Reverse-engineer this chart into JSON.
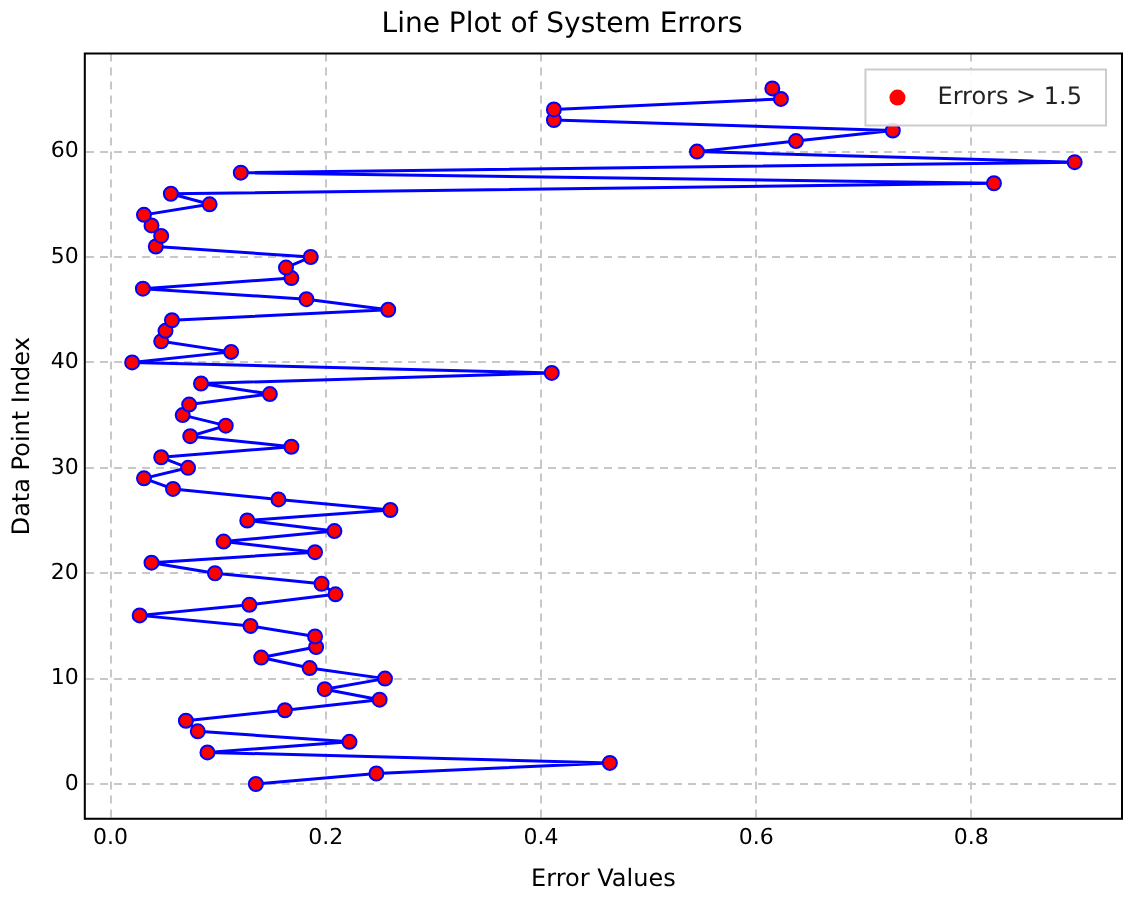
{
  "chart_data": {
    "type": "line",
    "title": "Line Plot of System Errors",
    "xlabel": "Error Values",
    "ylabel": "Data Point Index",
    "x": [
      0.135,
      0.247,
      0.464,
      0.09,
      0.222,
      0.081,
      0.07,
      0.162,
      0.25,
      0.199,
      0.255,
      0.185,
      0.14,
      0.191,
      0.19,
      0.13,
      0.027,
      0.129,
      0.209,
      0.196,
      0.097,
      0.038,
      0.19,
      0.105,
      0.208,
      0.127,
      0.26,
      0.156,
      0.058,
      0.031,
      0.072,
      0.047,
      0.168,
      0.074,
      0.107,
      0.067,
      0.073,
      0.148,
      0.084,
      0.41,
      0.02,
      0.112,
      0.047,
      0.051,
      0.057,
      0.258,
      0.182,
      0.03,
      0.168,
      0.163,
      0.186,
      0.042,
      0.047,
      0.038,
      0.031,
      0.092,
      0.056,
      0.821,
      0.121,
      0.896,
      0.545,
      0.637,
      0.727,
      0.412,
      0.412,
      0.623,
      0.615
    ],
    "series": [
      {
        "color": "#0000ff",
        "values": [
          0,
          1,
          2,
          3,
          4,
          5,
          6,
          7,
          8,
          9,
          10,
          11,
          12,
          13,
          14,
          15,
          16,
          17,
          18,
          19,
          20,
          21,
          22,
          23,
          24,
          25,
          26,
          27,
          28,
          29,
          30,
          31,
          32,
          33,
          34,
          35,
          36,
          37,
          38,
          39,
          40,
          41,
          42,
          43,
          44,
          45,
          46,
          47,
          48,
          49,
          50,
          51,
          52,
          53,
          54,
          55,
          56,
          57,
          58,
          59,
          60,
          61,
          62,
          63,
          64,
          65,
          66
        ]
      },
      {
        "type": "scatter",
        "name": "Errors > 1.5",
        "color": "#ff0000",
        "values": [
          0,
          1,
          2,
          3,
          4,
          5,
          6,
          7,
          8,
          9,
          10,
          11,
          12,
          13,
          14,
          15,
          16,
          17,
          18,
          19,
          20,
          21,
          22,
          23,
          24,
          25,
          26,
          27,
          28,
          29,
          30,
          31,
          32,
          33,
          34,
          35,
          36,
          37,
          38,
          39,
          40,
          41,
          42,
          43,
          44,
          45,
          46,
          47,
          48,
          49,
          50,
          51,
          52,
          53,
          54,
          55,
          56,
          57,
          58,
          59,
          60,
          61,
          62,
          63,
          64,
          65,
          66
        ]
      }
    ],
    "xlim": [
      -0.024,
      0.94
    ],
    "xticks": [
      {
        "value": 0,
        "label": "0.0"
      },
      {
        "value": 0.2,
        "label": "0.2"
      },
      {
        "value": 0.4,
        "label": "0.4"
      },
      {
        "value": 0.6,
        "label": "0.6"
      },
      {
        "value": 0.8,
        "label": "0.8"
      }
    ],
    "ylim": [
      -3.3,
      69.3
    ],
    "yticks": [
      0,
      10,
      20,
      30,
      40,
      50,
      60
    ],
    "grid": true,
    "legend": "top right",
    "line_style": "solid"
  }
}
